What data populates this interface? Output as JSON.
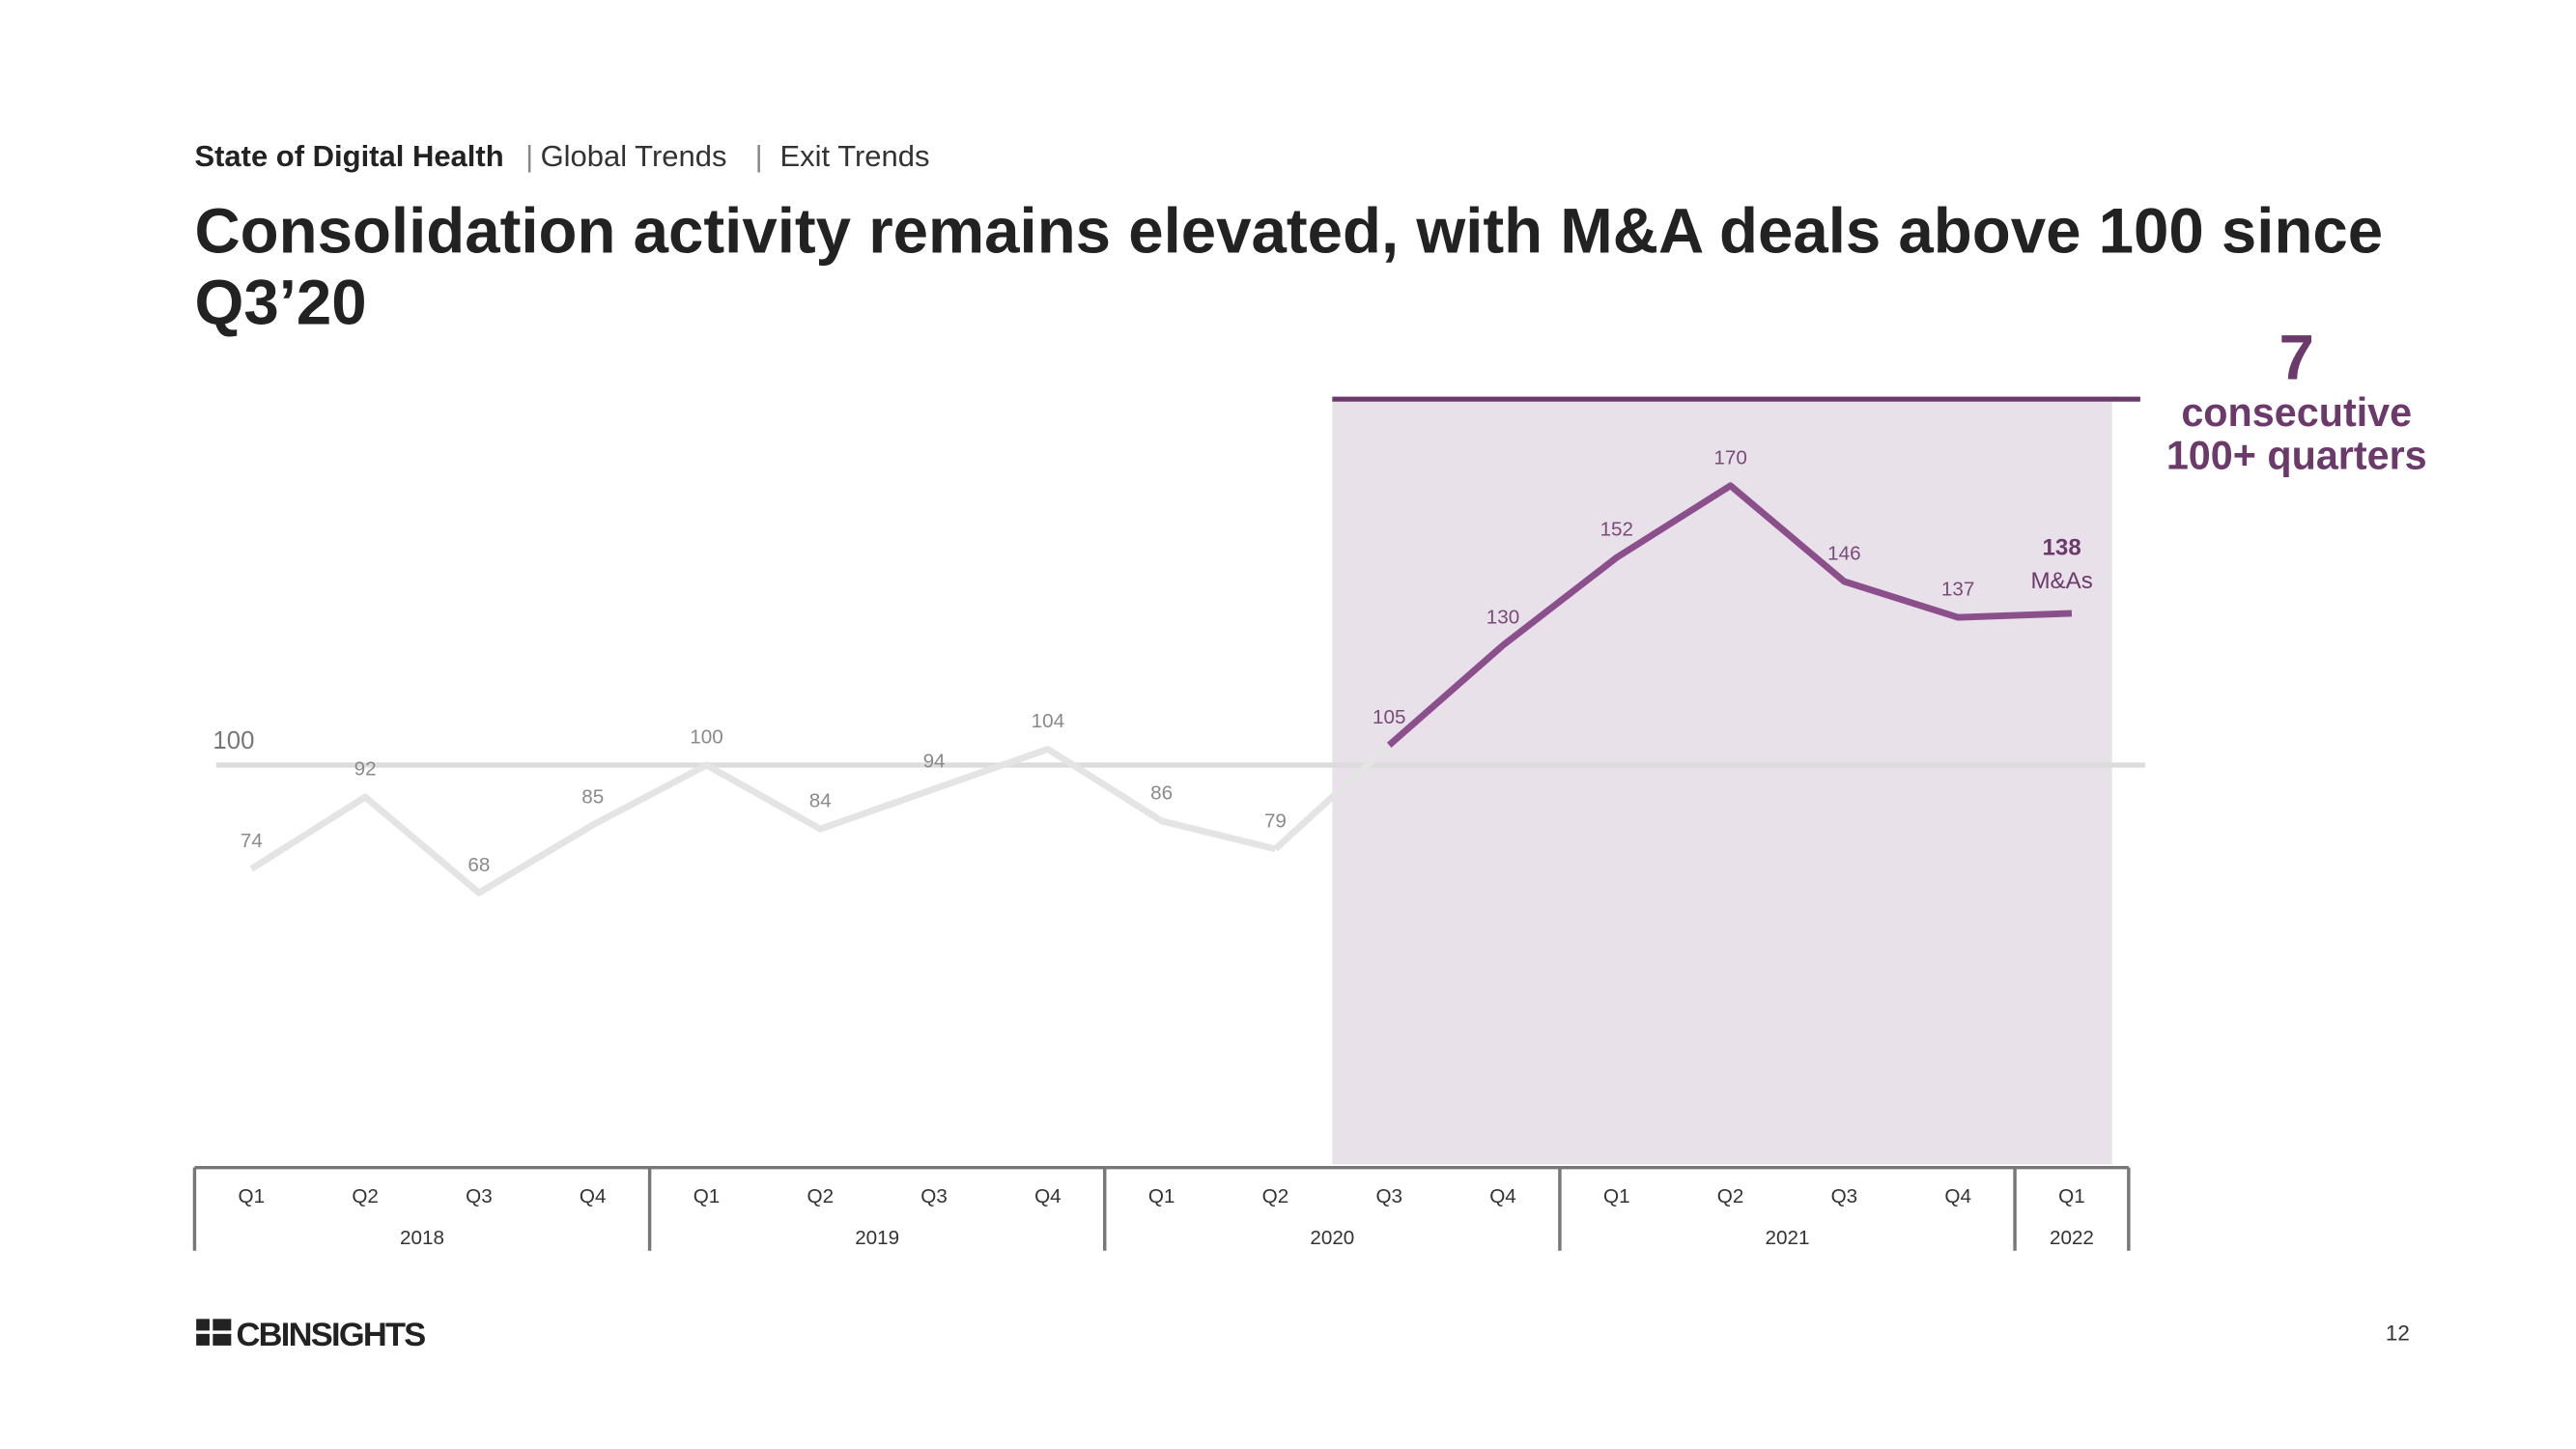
{
  "header": {
    "section": "State of Digital Health",
    "subsection": "Global Trends",
    "topic": "Exit Trends"
  },
  "chart_data": {
    "type": "line",
    "title": "Consolidation activity remains elevated, with M&A deals above 100 since",
    "title_line2": "Q3’20",
    "categories": [
      "Q1",
      "Q2",
      "Q3",
      "Q4",
      "Q1",
      "Q2",
      "Q3",
      "Q4",
      "Q1",
      "Q2",
      "Q3",
      "Q4",
      "Q1",
      "Q2",
      "Q3",
      "Q4",
      "Q1"
    ],
    "groups": [
      {
        "label": "2018",
        "span": 4
      },
      {
        "label": "2019",
        "span": 4
      },
      {
        "label": "2020",
        "span": 4
      },
      {
        "label": "2021",
        "span": 4
      },
      {
        "label": "2022",
        "span": 1
      }
    ],
    "series": [
      {
        "color": "#e4e4e4",
        "label_color": "#8a8a8a",
        "values": [
          74,
          92,
          68,
          85,
          100,
          84,
          94,
          104,
          86,
          79,
          null,
          null,
          null,
          null,
          null,
          null,
          null
        ]
      },
      {
        "color": "#8b4f8b",
        "label_color": "#7a4a7a",
        "values": [
          null,
          null,
          null,
          null,
          null,
          null,
          null,
          null,
          null,
          null,
          105,
          130,
          152,
          170,
          146,
          137,
          138
        ]
      }
    ],
    "reference_line": 100,
    "ylim": [
      0,
      200
    ],
    "highlight_color": "#e8e1ea",
    "last_value_note": "M&As",
    "annotation": {
      "value": 7,
      "lines": [
        "consecutive",
        "100+ quarters"
      ],
      "color": "#6b3a6b"
    }
  },
  "footer": {
    "logo": "CBINSIGHTS",
    "page": 12
  }
}
